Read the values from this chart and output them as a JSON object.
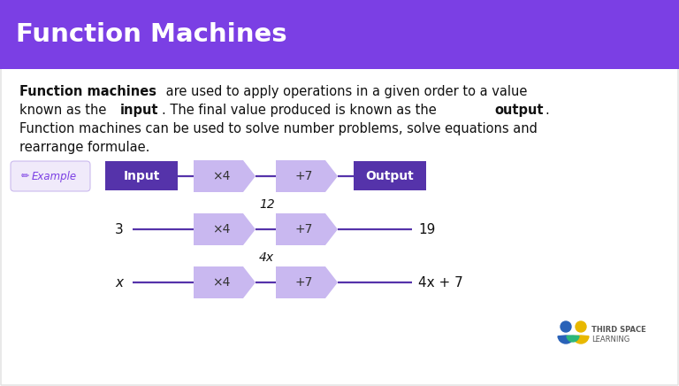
{
  "title": "Function Machines",
  "title_bg": "#7B3FE4",
  "title_color": "#ffffff",
  "body_bg": "#ffffff",
  "example_label": "Example",
  "example_label_color": "#7B3FE4",
  "example_label_bg": "#f0eafa",
  "arrow_color": "#5533AA",
  "box_color_dark": "#5533AA",
  "box_color_light": "#C9B8F0",
  "row1": {
    "input_label": "Input",
    "op1": "×4",
    "op2": "+7",
    "output_label": "Output"
  },
  "row2": {
    "input_val": "3",
    "op1": "×4",
    "mid_val": "12",
    "op2": "+7",
    "output_val": "19"
  },
  "row3": {
    "input_val": "x",
    "op1": "×4",
    "mid_val": "4x",
    "op2": "+7",
    "output_val": "4x + 7"
  },
  "logo_text1": "THIRD SPACE",
  "logo_text2": "LEARNING"
}
